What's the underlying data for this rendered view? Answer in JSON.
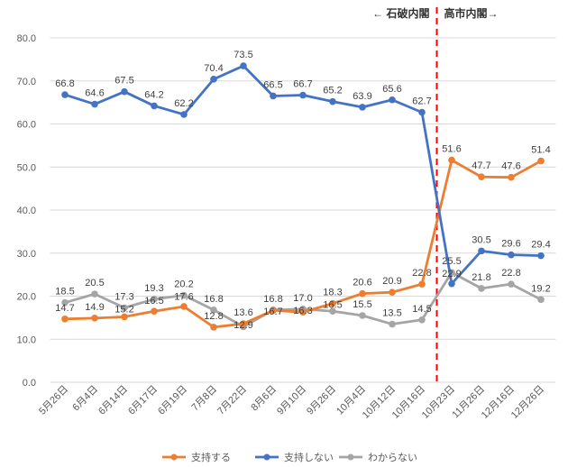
{
  "chart_data": {
    "type": "line",
    "categories": [
      "5月26日",
      "6月4日",
      "6月14日",
      "6月17日",
      "6月19日",
      "7月8日",
      "7月22日",
      "8月6日",
      "9月10日",
      "9月26日",
      "10月4日",
      "10月12日",
      "10月16日",
      "10月23日",
      "11月26日",
      "12月16日",
      "12月26日"
    ],
    "series": [
      {
        "name": "支持する",
        "color": "#ED7D31",
        "values": [
          14.7,
          14.9,
          15.2,
          16.5,
          17.6,
          12.8,
          13.6,
          16.7,
          16.3,
          18.3,
          20.6,
          20.9,
          22.8,
          51.6,
          47.7,
          47.6,
          51.4
        ]
      },
      {
        "name": "支持しない",
        "color": "#4472C4",
        "values": [
          66.8,
          64.6,
          67.5,
          64.2,
          62.2,
          70.4,
          73.5,
          66.5,
          66.7,
          65.2,
          63.9,
          65.6,
          62.7,
          22.9,
          30.5,
          29.6,
          29.4
        ]
      },
      {
        "name": "わからない",
        "color": "#A5A5A5",
        "values": [
          18.5,
          20.5,
          17.3,
          19.3,
          20.2,
          16.8,
          12.9,
          16.8,
          17.0,
          16.5,
          15.5,
          13.5,
          14.5,
          25.5,
          21.8,
          22.8,
          19.2
        ]
      }
    ],
    "ylim": [
      0,
      80
    ],
    "yticks": [
      "0.0",
      "10.0",
      "20.0",
      "30.0",
      "40.0",
      "50.0",
      "60.0",
      "70.0",
      "80.0"
    ],
    "grid": true,
    "legend": "bottom",
    "annotations": {
      "left": "← 石破内閣",
      "right": "高市内閣→",
      "divider_after_category": "10月16日"
    }
  }
}
